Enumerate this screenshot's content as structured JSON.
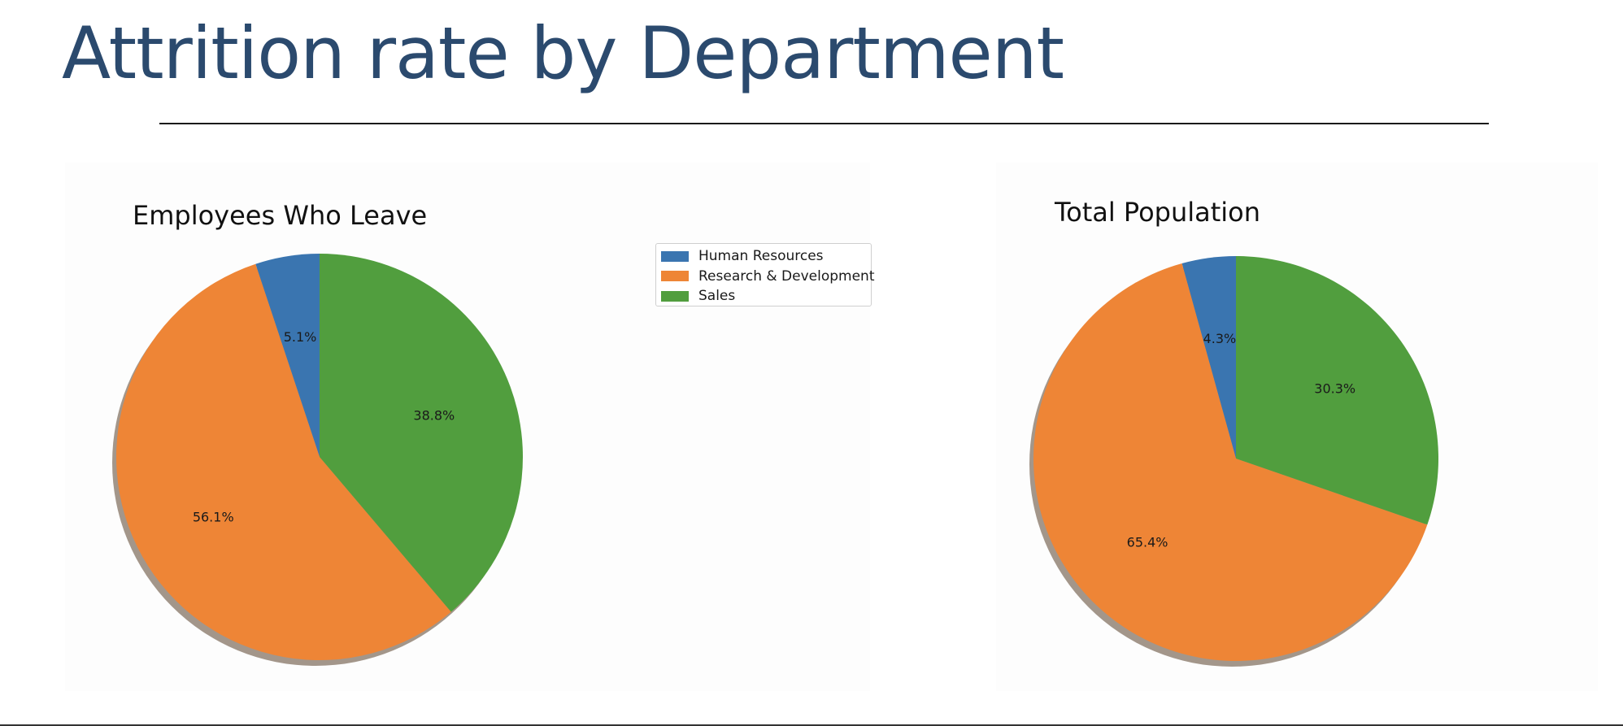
{
  "slide": {
    "title": "Attrition rate by Department"
  },
  "colors": {
    "human_resources": "#3a75b0",
    "research_development": "#ee8536",
    "sales": "#519e3e",
    "shadow": "#a3968a"
  },
  "legend": {
    "items": [
      {
        "label": "Human Resources",
        "color": "#3a75b0"
      },
      {
        "label": "Research & Development",
        "color": "#ee8536"
      },
      {
        "label": "Sales",
        "color": "#519e3e"
      }
    ]
  },
  "chart_data": [
    {
      "type": "pie",
      "title": "Employees Who Leave",
      "categories": [
        "Human Resources",
        "Research & Development",
        "Sales"
      ],
      "values": [
        5.1,
        56.1,
        38.8
      ],
      "labels": [
        "5.1%",
        "56.1%",
        "38.8%"
      ],
      "start_angle_deg": 90,
      "direction": "counterclockwise",
      "shadow": true,
      "legend": "top-center"
    },
    {
      "type": "pie",
      "title": "Total Population",
      "categories": [
        "Human Resources",
        "Research & Development",
        "Sales"
      ],
      "values": [
        4.3,
        65.4,
        30.3
      ],
      "labels": [
        "4.3%",
        "65.4%",
        "30.3%"
      ],
      "start_angle_deg": 90,
      "direction": "counterclockwise",
      "shadow": true,
      "legend": "top-center"
    }
  ]
}
